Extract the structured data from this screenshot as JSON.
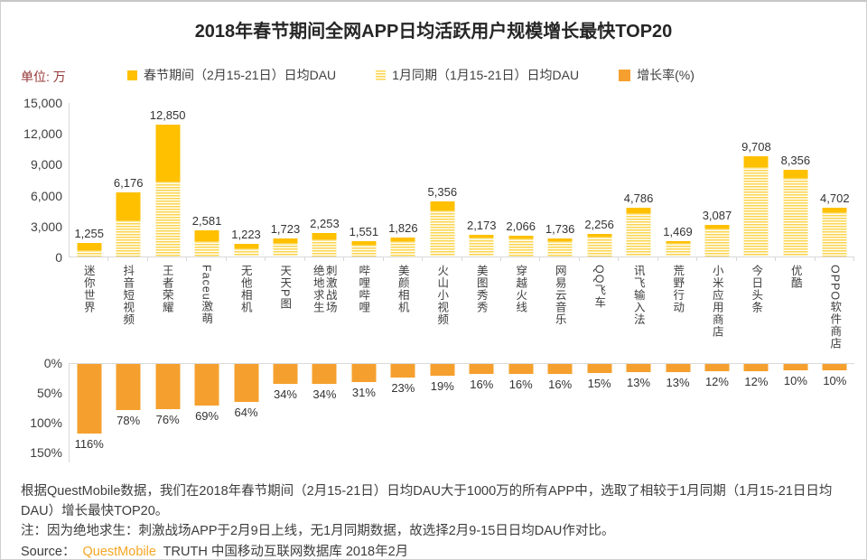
{
  "page_title": "2018年春节期间全网APP日均活跃用户规模增长最快TOP20",
  "unit_label": "单位: 万",
  "legend": [
    {
      "label": "春节期间（2月15-21日）日均DAU",
      "swatch": "solid-gold"
    },
    {
      "label": "1月同期（1月15-21日）日均DAU",
      "swatch": "striped-yellow"
    },
    {
      "label": "增长率(%)",
      "swatch": "solid-orange"
    }
  ],
  "chart_data": {
    "type": "bar",
    "title": "2018年春节期间全网APP日均活跃用户规模增长最快TOP20",
    "unit": "万",
    "legend_position": "top",
    "grid": "off",
    "categories": [
      "迷你世界",
      "抖音短视频",
      "王者荣耀",
      "Faceu激萌",
      "无他相机",
      "天天P图",
      "绝地求生\n刺激战场",
      "哔哩哔哩",
      "美颜相机",
      "火山小视频",
      "美图秀秀",
      "穿越火线",
      "网易云音乐",
      "QQ飞车",
      "讯飞输入法",
      "荒野行动",
      "小米应用商店",
      "今日头条",
      "优酷",
      "OPPO软件商店"
    ],
    "series": [
      {
        "name": "春节期间（2月15-21日）日均DAU",
        "values": [
          1255,
          6176,
          12850,
          2581,
          1223,
          1723,
          2253,
          1551,
          1826,
          5356,
          2173,
          2066,
          1736,
          2256,
          4786,
          1469,
          3087,
          9708,
          8356,
          4702
        ],
        "labeled": true
      },
      {
        "name": "1月同期（1月15-21日）日均DAU",
        "values": [
          581,
          3470,
          7301,
          1527,
          746,
          1286,
          1681,
          1184,
          1485,
          4501,
          1873,
          1781,
          1497,
          1962,
          4235,
          1300,
          2756,
          8668,
          7596,
          4275
        ],
        "note": "not labeled in chart; estimated from striped bar heights and growth rates"
      },
      {
        "name": "增长率(%)",
        "values": [
          116,
          78,
          76,
          69,
          64,
          34,
          34,
          31,
          23,
          19,
          16,
          16,
          16,
          15,
          13,
          13,
          12,
          12,
          10,
          10
        ],
        "labeled": true
      }
    ],
    "dau_axis": {
      "ticks": [
        "0",
        "3,000",
        "6,000",
        "9,000",
        "12,000",
        "15,000"
      ],
      "min": 0,
      "max": 15000
    },
    "growth_axis": {
      "ticks": [
        "0%",
        "50%",
        "100%",
        "150%"
      ],
      "min": 0,
      "max": 150,
      "direction": "down"
    }
  },
  "footer": {
    "line1": "根据QuestMobile数据，我们在2018年春节期间（2月15-21日）日均DAU大于1000万的所有APP中，选取了相较于1月同期（1月15-21日日均DAU）增长最快TOP20。",
    "note": "注：因为绝地求生：刺激战场APP于2月9日上线，无1月同期数据，故选择2月9-15日日均DAU作对比。",
    "source_prefix": "Source：",
    "source_brand": "QuestMobile",
    "source_rest": "TRUTH 中国移动互联网数据库 2018年2月"
  },
  "colors": {
    "festival_bar": "#FFC000",
    "january_stripe": "#FBD44F",
    "growth_bar": "#F5A02E",
    "axis_line": "#D9D9D9",
    "text": "#404040",
    "unit_label": "#953735",
    "brand": "#F5A623"
  }
}
